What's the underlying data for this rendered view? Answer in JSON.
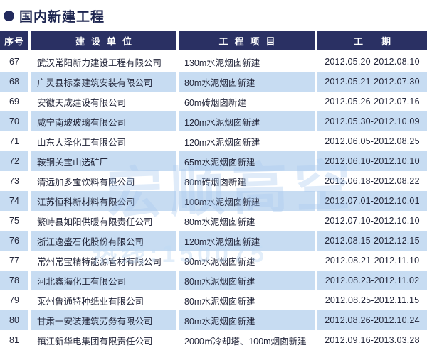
{
  "page": {
    "title": "国内新建工程"
  },
  "table": {
    "headers": {
      "seq": "序号",
      "company": "建设单位",
      "project": "工程项目",
      "date": "工期"
    },
    "rows": [
      {
        "seq": "67",
        "company": "武汉常阳新力建设工程有限公司",
        "project": "130m水泥烟囱新建",
        "date": "2012.05.20-2012.08.10"
      },
      {
        "seq": "68",
        "company": "广灵县标泰建筑安装有限公司",
        "project": "80m水泥烟囱新建",
        "date": "2012.05.21-2012.07.30"
      },
      {
        "seq": "69",
        "company": "安徽天成建设有限公司",
        "project": "60m砖烟囱新建",
        "date": "2012.05.26-2012.07.16"
      },
      {
        "seq": "70",
        "company": "咸宁南玻玻璃有限公司",
        "project": "120m水泥烟囱新建",
        "date": "2012.05.30-2012.10.09"
      },
      {
        "seq": "71",
        "company": "山东大泽化工有限公司",
        "project": "120m水泥烟囱新建",
        "date": "2012.06.05-2012.08.25"
      },
      {
        "seq": "72",
        "company": "鞍钢关宝山选矿厂",
        "project": "65m水泥烟囱新建",
        "date": "2012.06.10-2012.10.10"
      },
      {
        "seq": "73",
        "company": "清远加多宝饮料有限公司",
        "project": "80m砖烟囱新建",
        "date": "2012.06.18-2012.08.22"
      },
      {
        "seq": "74",
        "company": "江苏恒科新材料有限公司",
        "project": "100m水泥烟囱新建",
        "date": "2012.07.01-2012.10.01"
      },
      {
        "seq": "75",
        "company": "繁峙县如阳供暖有限责任公司",
        "project": "80m水泥烟囱新建",
        "date": "2012.07.10-2012.10.10"
      },
      {
        "seq": "76",
        "company": "浙江逸盛石化股份有限公司",
        "project": "120m水泥烟囱新建",
        "date": "2012.08.15-2012.12.15"
      },
      {
        "seq": "77",
        "company": "常州常宝精特能源管材有限公司",
        "project": "80m水泥烟囱新建",
        "date": "2012.08.21-2012.11.10"
      },
      {
        "seq": "78",
        "company": "河北鑫海化工有限公司",
        "project": "80m水泥烟囱新建",
        "date": "2012.08.23-2012.11.02"
      },
      {
        "seq": "79",
        "company": "莱州鲁通特种纸业有限公司",
        "project": "80m水泥烟囱新建",
        "date": "2012.08.25-2012.11.15"
      },
      {
        "seq": "80",
        "company": "甘肃一安装建筑劳务有限公司",
        "project": "80m水泥烟囱新建",
        "date": "2012.08.26-2012.10.24"
      },
      {
        "seq": "81",
        "company": "镇江新华电集团有限责任公司",
        "project": "2000㎡冷却塔、100m烟囱新建",
        "date": "2012.09.16-2013.03.28"
      }
    ]
  },
  "watermark": {
    "big_text": "宏顺高空",
    "line_text": "热线:150075"
  },
  "colors": {
    "header_navy": "#2a3063",
    "title_navy": "#1d2550",
    "row_alt_blue": "#c7dcf2",
    "body_text": "#23263a"
  }
}
